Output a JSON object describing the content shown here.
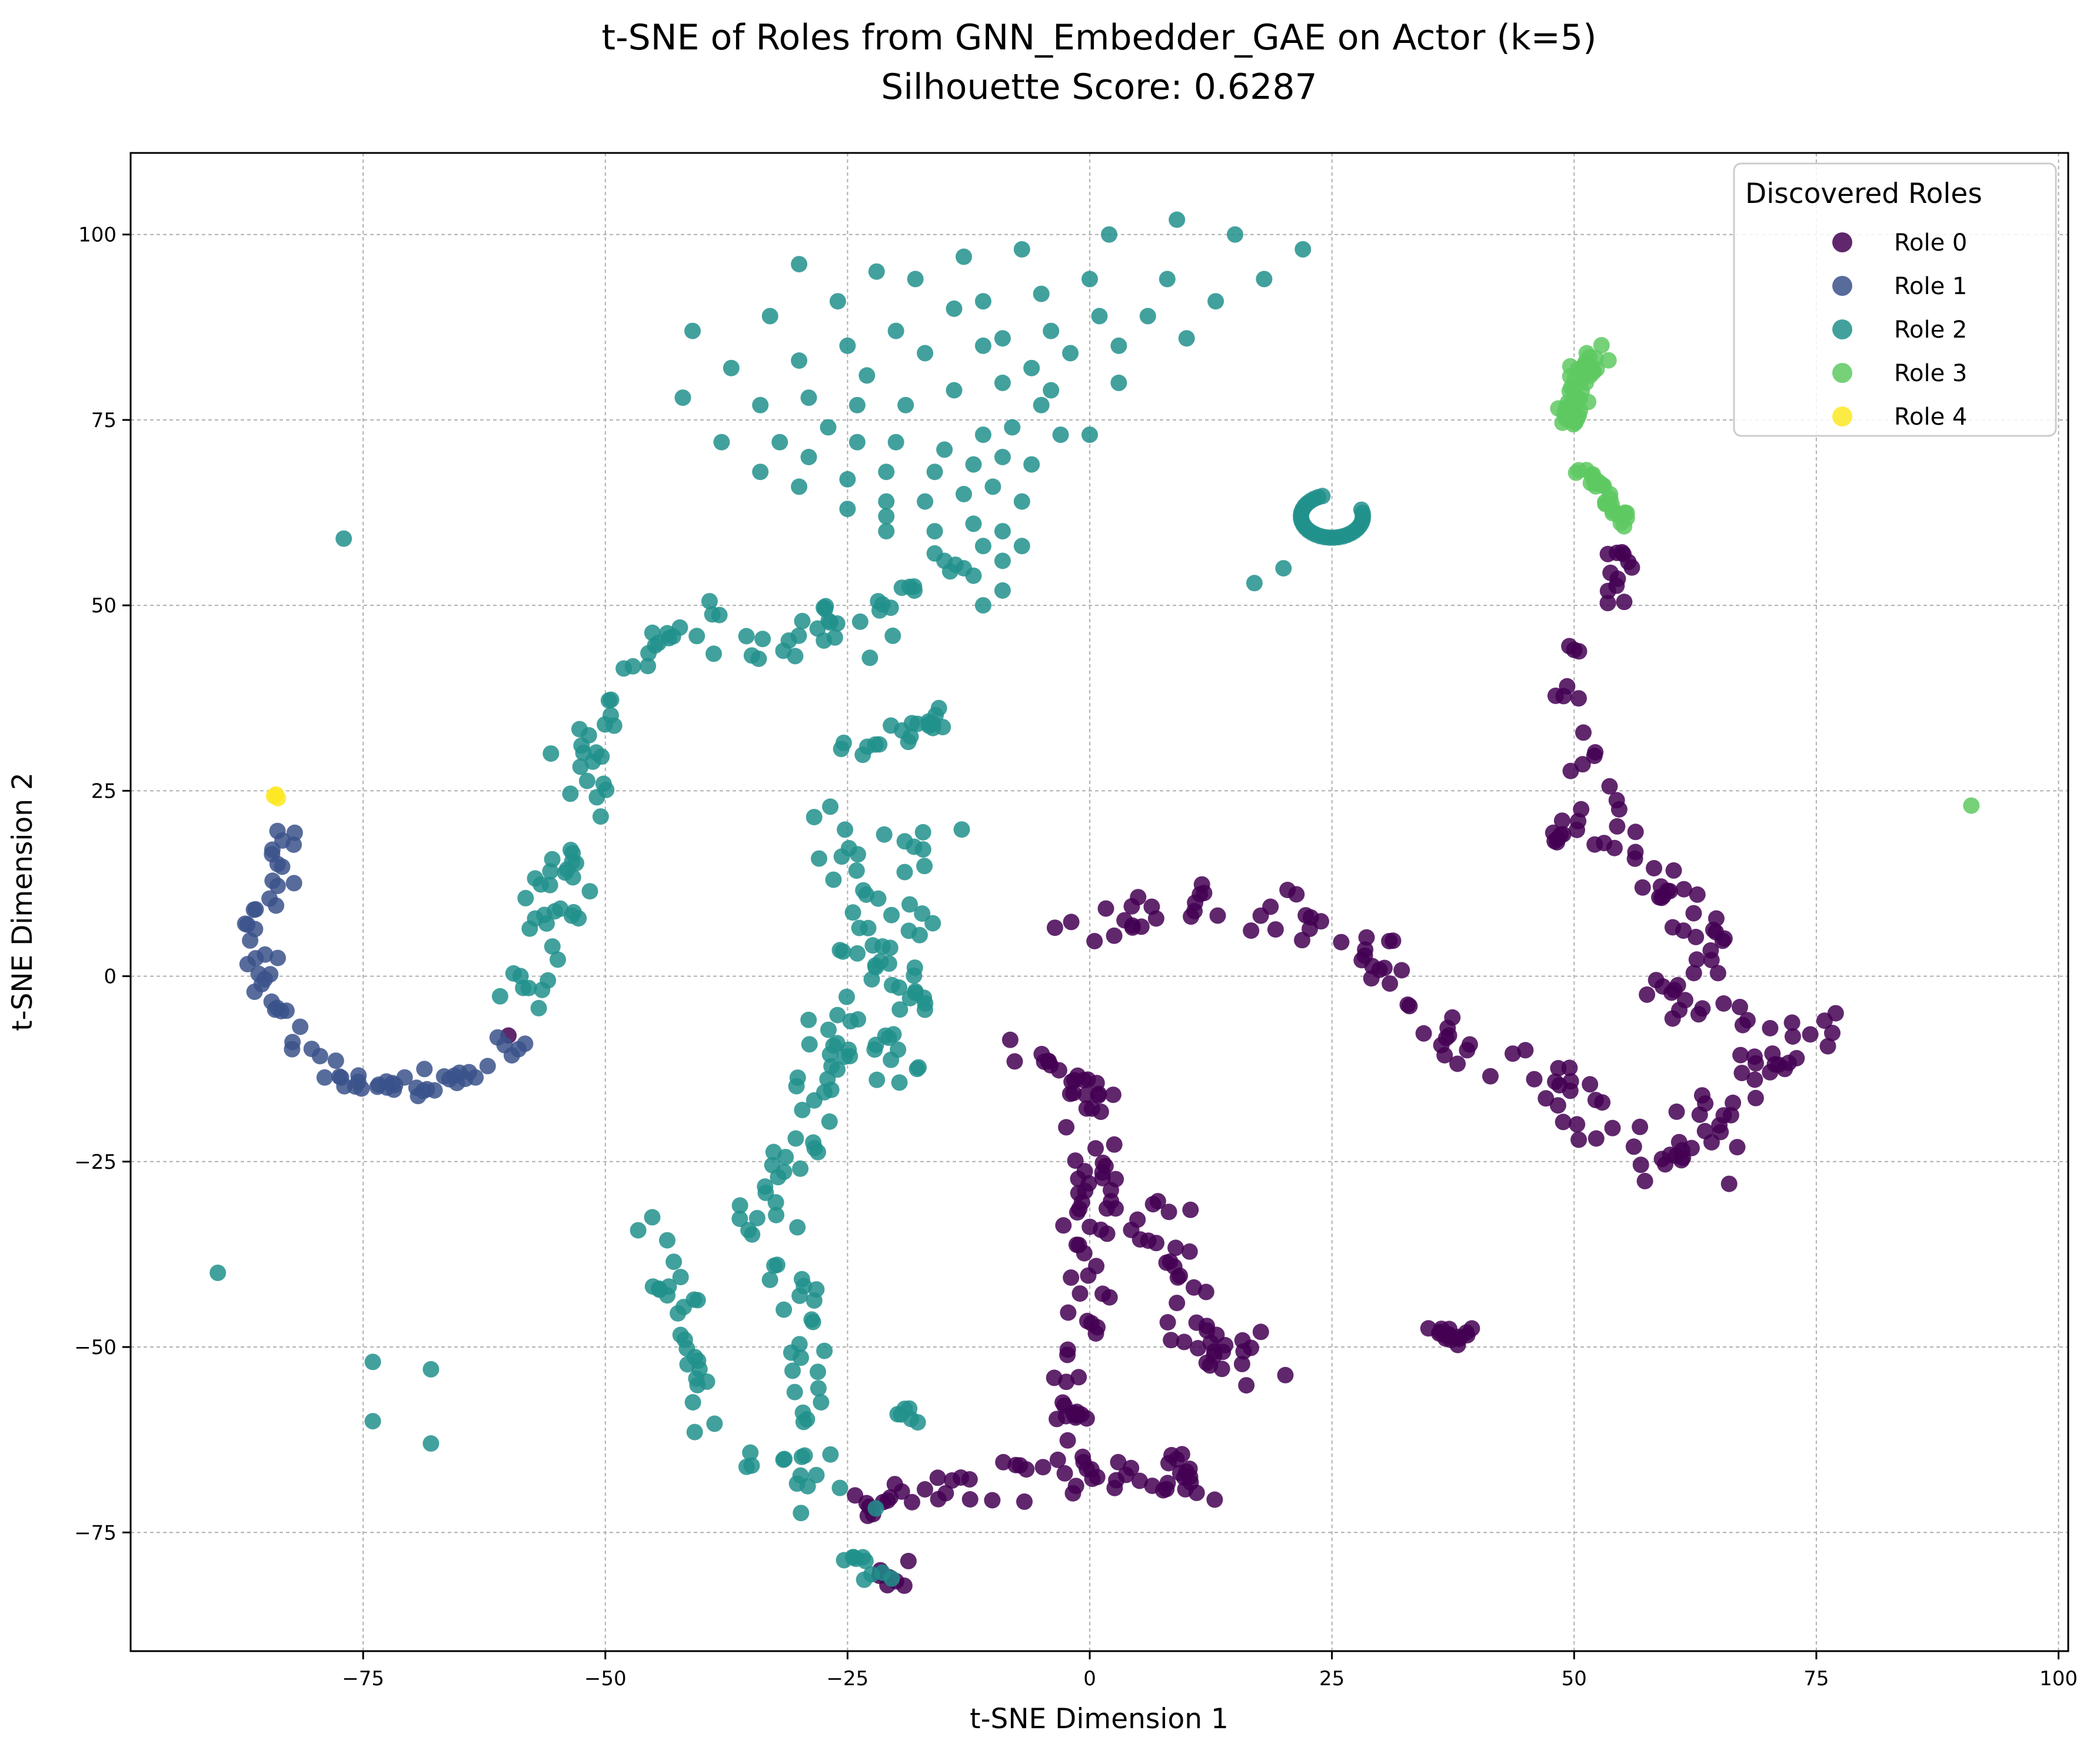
{
  "chart_data": {
    "type": "scatter",
    "title": "t-SNE of Roles from GNN_Embedder_GAE on Actor (k=5)",
    "subtitle": "Silhouette Score: 0.6287",
    "xlabel": "t-SNE Dimension 1",
    "ylabel": "t-SNE Dimension 2",
    "xlim": [
      -99,
      101
    ],
    "ylim": [
      -91,
      111
    ],
    "xticks": [
      -75,
      -50,
      -25,
      0,
      25,
      50,
      75,
      100
    ],
    "yticks": [
      -75,
      -50,
      -25,
      0,
      25,
      50,
      75,
      100
    ],
    "xtick_labels": [
      "−75",
      "−50",
      "−25",
      "0",
      "25",
      "50",
      "75",
      "100"
    ],
    "ytick_labels": [
      "−75",
      "−50",
      "−25",
      "0",
      "25",
      "50",
      "75",
      "100"
    ],
    "grid": true,
    "legend_title": "Discovered Roles",
    "legend_position": "top-right",
    "series": [
      {
        "name": "Role 0",
        "color": "#440154",
        "clusters": [
          {
            "path": [
              [
                0,
                5
              ],
              [
                5,
                10
              ],
              [
                12,
                10
              ],
              [
                20,
                8
              ],
              [
                30,
                2
              ],
              [
                35,
                -5
              ],
              [
                40,
                -10
              ],
              [
                48,
                -12
              ],
              [
                52,
                -20
              ],
              [
                60,
                -25
              ],
              [
                65,
                -18
              ],
              [
                70,
                -12
              ],
              [
                75,
                -8
              ]
            ],
            "count": 120,
            "spread": 3.2
          },
          {
            "path": [
              [
                -8,
                -10
              ],
              [
                -3,
                -12
              ],
              [
                0,
                -15
              ],
              [
                0,
                -30
              ],
              [
                0,
                -45
              ],
              [
                -2,
                -55
              ],
              [
                0,
                -65
              ],
              [
                0,
                -72
              ]
            ],
            "count": 80,
            "spread": 2.5
          },
          {
            "path": [
              [
                3,
                -30
              ],
              [
                8,
                -35
              ],
              [
                10,
                -45
              ],
              [
                15,
                -55
              ],
              [
                20,
                -50
              ]
            ],
            "count": 45,
            "spread": 3.5
          },
          {
            "path": [
              [
                -25,
                -72
              ],
              [
                -18,
                -70
              ],
              [
                -10,
                -68
              ],
              [
                -5,
                -65
              ],
              [
                3,
                -68
              ],
              [
                8,
                -66
              ],
              [
                12,
                -70
              ]
            ],
            "count": 55,
            "spread": 3
          },
          {
            "path": [
              [
                -19,
                -78
              ],
              [
                -23,
                -81
              ],
              [
                -19,
                -82
              ]
            ],
            "count": 8,
            "spread": 1
          },
          {
            "path": [
              [
                50,
                38
              ],
              [
                52,
                30
              ],
              [
                52,
                22
              ],
              [
                55,
                18
              ],
              [
                60,
                12
              ],
              [
                65,
                5
              ],
              [
                62,
                0
              ],
              [
                58,
                -3
              ],
              [
                65,
                -5
              ],
              [
                70,
                -8
              ]
            ],
            "count": 60,
            "spread": 3
          },
          {
            "path": [
              [
                48,
                18
              ],
              [
                50,
                22
              ]
            ],
            "count": 10,
            "spread": 1.5
          },
          {
            "path": [
              [
                54,
                58
              ],
              [
                55,
                55
              ],
              [
                54,
                50
              ]
            ],
            "count": 12,
            "spread": 1.2
          },
          {
            "path": [
              [
                35,
                -47
              ],
              [
                37,
                -49
              ],
              [
                39,
                -48
              ]
            ],
            "count": 16,
            "spread": 1.2
          }
        ],
        "points": [
          [
            50,
            44
          ],
          [
            49.5,
            44.5
          ],
          [
            50.5,
            43.8
          ],
          [
            -60,
            -8
          ],
          [
            66,
            -28
          ],
          [
            77,
            -5
          ]
        ]
      },
      {
        "name": "Role 1",
        "color": "#3b528b",
        "clusters": [
          {
            "path": [
              [
                -83,
                20
              ],
              [
                -84,
                12
              ],
              [
                -86,
                6
              ],
              [
                -85,
                -2
              ],
              [
                -82,
                -8
              ],
              [
                -77,
                -13
              ],
              [
                -70,
                -15
              ],
              [
                -65,
                -14
              ],
              [
                -61,
                -11
              ],
              [
                -59,
                -8
              ]
            ],
            "count": 75,
            "spread": 1.6
          }
        ],
        "points": []
      },
      {
        "name": "Role 2",
        "color": "#21918c",
        "clusters": [
          {
            "path": [
              [
                -58,
                -5
              ],
              [
                -55,
                10
              ],
              [
                -52,
                25
              ],
              [
                -50,
                35
              ],
              [
                -45,
                45
              ],
              [
                -38,
                49
              ],
              [
                -32,
                45
              ],
              [
                -27,
                48
              ],
              [
                -22,
                45
              ]
            ],
            "count": 90,
            "spread": 3.2
          },
          {
            "path": [
              [
                -25,
                30
              ],
              [
                -20,
                33
              ],
              [
                -15,
                35
              ]
            ],
            "count": 20,
            "spread": 2
          },
          {
            "path": [
              [
                -27,
                22
              ],
              [
                -25,
                10
              ],
              [
                -22,
                5
              ],
              [
                -25,
                -5
              ],
              [
                -28,
                -15
              ],
              [
                -30,
                -25
              ],
              [
                -35,
                -35
              ],
              [
                -30,
                -45
              ],
              [
                -28,
                -55
              ],
              [
                -30,
                -65
              ],
              [
                -25,
                -70
              ]
            ],
            "count": 100,
            "spread": 3.2
          },
          {
            "path": [
              [
                -20,
                -15
              ],
              [
                -18,
                0
              ],
              [
                -20,
                15
              ],
              [
                -15,
                20
              ]
            ],
            "count": 40,
            "spread": 3
          },
          {
            "path": [
              [
                -45,
                -35
              ],
              [
                -42,
                -45
              ],
              [
                -40,
                -55
              ],
              [
                -36,
                -65
              ]
            ],
            "count": 30,
            "spread": 2.5
          },
          {
            "path": [
              [
                -25,
                -75
              ],
              [
                -23,
                -80
              ],
              [
                -21,
                -82
              ]
            ],
            "count": 10,
            "spread": 1.5
          },
          {
            "path": [
              [
                -20,
                -58
              ],
              [
                -18,
                -60
              ]
            ],
            "count": 6,
            "spread": 1
          },
          {
            "path": [
              [
                -22,
                50
              ],
              [
                -18,
                52
              ],
              [
                -14,
                55
              ]
            ],
            "count": 10,
            "spread": 1.5
          }
        ],
        "arc": {
          "cx": 25,
          "cy": 62,
          "r": 3.2,
          "count": 32
        },
        "points": [
          [
            -30,
            96
          ],
          [
            -22,
            95
          ],
          [
            -13,
            97
          ],
          [
            -7,
            98
          ],
          [
            2,
            100
          ],
          [
            9,
            102
          ],
          [
            15,
            100
          ],
          [
            22,
            98
          ],
          [
            -41,
            87
          ],
          [
            -33,
            89
          ],
          [
            -26,
            91
          ],
          [
            -18,
            94
          ],
          [
            -11,
            91
          ],
          [
            -5,
            92
          ],
          [
            0,
            94
          ],
          [
            8,
            94
          ],
          [
            18,
            94
          ],
          [
            -37,
            82
          ],
          [
            -30,
            83
          ],
          [
            -25,
            85
          ],
          [
            -20,
            87
          ],
          [
            -14,
            90
          ],
          [
            -9,
            86
          ],
          [
            -4,
            87
          ],
          [
            1,
            89
          ],
          [
            6,
            89
          ],
          [
            13,
            91
          ],
          [
            10,
            86
          ],
          [
            -42,
            78
          ],
          [
            -34,
            77
          ],
          [
            -29,
            78
          ],
          [
            -23,
            81
          ],
          [
            -17,
            84
          ],
          [
            -11,
            85
          ],
          [
            -6,
            82
          ],
          [
            -2,
            84
          ],
          [
            3,
            85
          ],
          [
            -38,
            72
          ],
          [
            -32,
            72
          ],
          [
            -27,
            74
          ],
          [
            -24,
            77
          ],
          [
            -19,
            77
          ],
          [
            -14,
            79
          ],
          [
            -9,
            80
          ],
          [
            -4,
            79
          ],
          [
            3,
            80
          ],
          [
            -34,
            68
          ],
          [
            -29,
            70
          ],
          [
            -24,
            72
          ],
          [
            -20,
            72
          ],
          [
            -15,
            71
          ],
          [
            -11,
            73
          ],
          [
            -8,
            74
          ],
          [
            -5,
            77
          ],
          [
            0,
            73
          ],
          [
            -30,
            66
          ],
          [
            -25,
            67
          ],
          [
            -21,
            68
          ],
          [
            -16,
            68
          ],
          [
            -12,
            69
          ],
          [
            -9,
            70
          ],
          [
            -6,
            69
          ],
          [
            -25,
            63
          ],
          [
            -21,
            64
          ],
          [
            -17,
            64
          ],
          [
            -13,
            65
          ],
          [
            -10,
            66
          ],
          [
            -7,
            64
          ],
          [
            -3,
            73
          ],
          [
            -21,
            60
          ],
          [
            -16,
            60
          ],
          [
            -12,
            61
          ],
          [
            -9,
            60
          ],
          [
            -7,
            58
          ],
          [
            -11,
            58
          ],
          [
            -9,
            56
          ],
          [
            -12,
            54
          ],
          [
            -9,
            52
          ],
          [
            -11,
            50
          ],
          [
            -13,
            55
          ],
          [
            -15,
            56
          ],
          [
            -77,
            59
          ],
          [
            -90,
            -40
          ],
          [
            -74,
            -52
          ],
          [
            -74,
            -60
          ],
          [
            -68,
            -53
          ],
          [
            -68,
            -63
          ],
          [
            17,
            53
          ],
          [
            20,
            55
          ],
          [
            -21,
            62
          ],
          [
            -16,
            57
          ]
        ]
      },
      {
        "name": "Role 3",
        "color": "#5ec962",
        "clusters": [
          {
            "path": [
              [
                49,
                74
              ],
              [
                50,
                78
              ],
              [
                51,
                81
              ],
              [
                52,
                84
              ],
              [
                53,
                85
              ]
            ],
            "count": 50,
            "spread": 1.3
          },
          {
            "path": [
              [
                50,
                68
              ],
              [
                52,
                67
              ],
              [
                53,
                65
              ],
              [
                54,
                63
              ],
              [
                55,
                61
              ]
            ],
            "count": 28,
            "spread": 1
          }
        ],
        "points": [
          [
            91,
            23
          ]
        ]
      },
      {
        "name": "Role 4",
        "color": "#fde725",
        "clusters": [],
        "points": [
          [
            -84,
            24.5
          ],
          [
            -83.8,
            24
          ],
          [
            -84.2,
            24.3
          ]
        ]
      }
    ]
  }
}
